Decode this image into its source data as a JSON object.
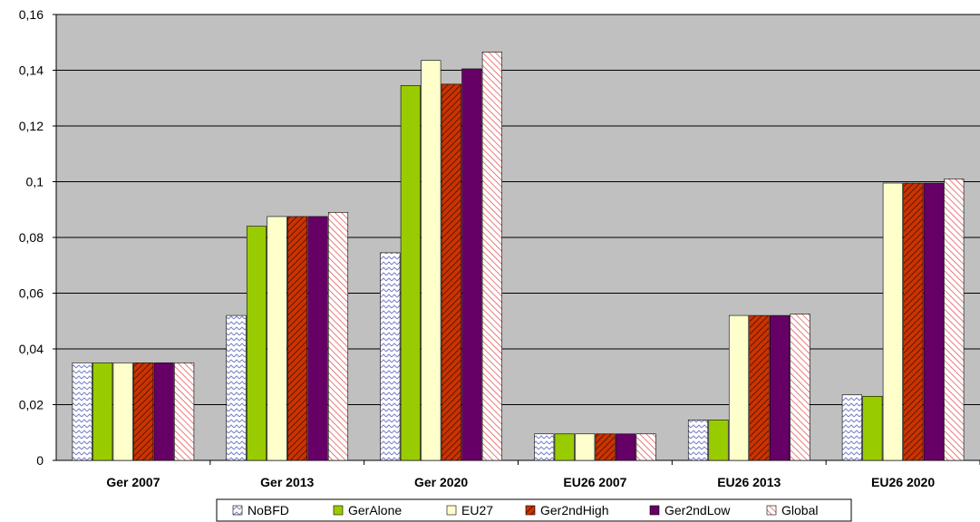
{
  "chart_data": {
    "type": "bar",
    "categories": [
      "Ger 2007",
      "Ger 2013",
      "Ger 2020",
      "EU26 2007",
      "EU26 2013",
      "EU26 2020"
    ],
    "ylim": [
      0,
      0.16
    ],
    "yticks": [
      "0",
      "0,02",
      "0,04",
      "0,06",
      "0,08",
      "0,1",
      "0,12",
      "0,14",
      "0,16"
    ],
    "grid": true,
    "legend_position": "bottom",
    "plot_background": "#c0c0c0",
    "series": [
      {
        "name": "NoBFD",
        "color": "#ffffff",
        "pattern": "zigzag-blue",
        "values": [
          0.035,
          0.052,
          0.0745,
          0.0095,
          0.0145,
          0.0235
        ]
      },
      {
        "name": "GerAlone",
        "color": "#99cc00",
        "pattern": "solid",
        "values": [
          0.035,
          0.084,
          0.1345,
          0.0095,
          0.0145,
          0.023
        ]
      },
      {
        "name": "EU27",
        "color": "#ffffcc",
        "pattern": "solid",
        "values": [
          0.035,
          0.0875,
          0.1435,
          0.0095,
          0.052,
          0.0995
        ]
      },
      {
        "name": "Ger2ndHigh",
        "color": "#cc3300",
        "pattern": "diagonal-dark",
        "values": [
          0.035,
          0.0875,
          0.135,
          0.0095,
          0.052,
          0.0995
        ]
      },
      {
        "name": "Ger2ndLow",
        "color": "#660066",
        "pattern": "solid",
        "values": [
          0.035,
          0.0875,
          0.1405,
          0.0095,
          0.052,
          0.0995
        ]
      },
      {
        "name": "Global",
        "color": "#ffffff",
        "pattern": "diagonal-red",
        "values": [
          0.035,
          0.089,
          0.1465,
          0.0095,
          0.0525,
          0.101
        ]
      }
    ]
  }
}
